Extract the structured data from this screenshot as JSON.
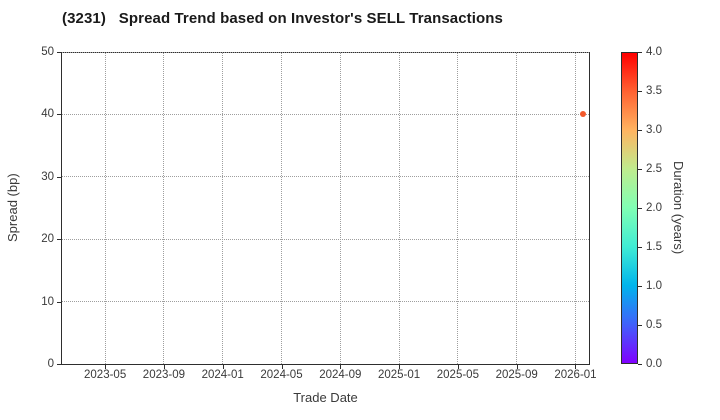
{
  "chart_data": {
    "type": "scatter",
    "title": "(3231)   Spread Trend based on Investor's SELL Transactions",
    "xlabel": "Trade Date",
    "ylabel": "Spread (bp)",
    "x_domain": [
      "2023-02-03",
      "2026-01-29"
    ],
    "x_ticks": [
      "2023-05",
      "2023-09",
      "2024-01",
      "2024-05",
      "2024-09",
      "2025-01",
      "2025-05",
      "2025-09",
      "2026-01"
    ],
    "ylim": [
      0,
      50
    ],
    "y_ticks": [
      0,
      10,
      20,
      30,
      40,
      50
    ],
    "grid": true,
    "points": [
      {
        "date": "2026-01-17",
        "spread_bp": 40,
        "duration_years": 3.5,
        "color": "#f2582a"
      }
    ],
    "colorbar": {
      "label": "Duration (years)",
      "min": 0.0,
      "max": 4.0,
      "ticks": [
        "0.0",
        "0.5",
        "1.0",
        "1.5",
        "2.0",
        "2.5",
        "3.0",
        "3.5",
        "4.0"
      ],
      "colormap": "rainbow",
      "gradient_stops": [
        {
          "t": 0.0,
          "color": "#8000ff"
        },
        {
          "t": 0.125,
          "color": "#4061fb"
        },
        {
          "t": 0.25,
          "color": "#00b4ec"
        },
        {
          "t": 0.375,
          "color": "#40ecd4"
        },
        {
          "t": 0.5,
          "color": "#80ffb4"
        },
        {
          "t": 0.625,
          "color": "#bfec8e"
        },
        {
          "t": 0.75,
          "color": "#ffb461"
        },
        {
          "t": 0.875,
          "color": "#ff6232"
        },
        {
          "t": 1.0,
          "color": "#ff0000"
        }
      ]
    }
  },
  "style": {
    "background": "#ffffff",
    "spine_color": "#2e2e2e",
    "grid_color": "#9e9e9e",
    "text_color": "#3a3a3a",
    "title_color": "#1a1a1a"
  }
}
